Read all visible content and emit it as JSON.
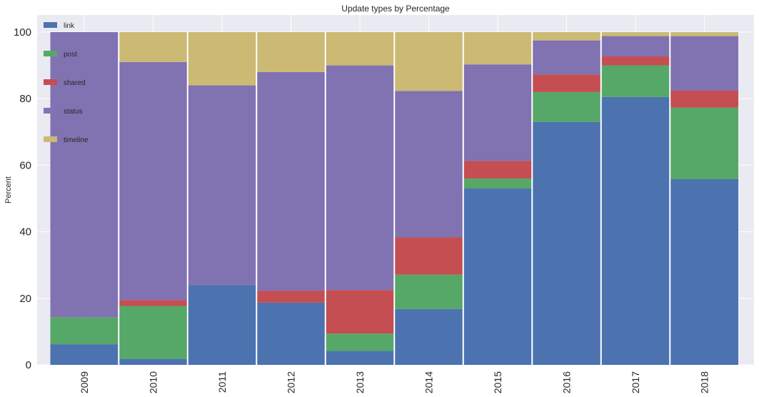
{
  "chart_data": {
    "type": "bar",
    "stacked": true,
    "title": "Update types by Percentage",
    "xlabel": "",
    "ylabel": "Percent",
    "ylim": [
      0,
      100
    ],
    "yticks": [
      0,
      20,
      40,
      60,
      80,
      100
    ],
    "grid": true,
    "legend": "top-left",
    "categories": [
      "2009",
      "2010",
      "2011",
      "2012",
      "2013",
      "2014",
      "2015",
      "2016",
      "2017",
      "2018"
    ],
    "series": [
      {
        "name": "link",
        "color": "#4c72b0",
        "values": [
          6.2,
          1.8,
          24.0,
          18.7,
          4.2,
          16.8,
          53.0,
          73.0,
          80.5,
          55.8
        ]
      },
      {
        "name": "post",
        "color": "#55a868",
        "values": [
          8.1,
          15.9,
          0.0,
          0.0,
          5.2,
          10.3,
          3.0,
          9.0,
          9.5,
          21.5
        ]
      },
      {
        "name": "shared",
        "color": "#c44e52",
        "values": [
          0.0,
          1.8,
          0.0,
          3.6,
          13.1,
          11.2,
          5.3,
          5.3,
          2.7,
          5.1
        ]
      },
      {
        "name": "status",
        "color": "#8172b2",
        "values": [
          85.7,
          71.5,
          60.0,
          65.7,
          67.5,
          44.0,
          29.0,
          10.2,
          6.1,
          16.4
        ]
      },
      {
        "name": "timeline",
        "color": "#ccb974",
        "values": [
          0.0,
          9.0,
          16.0,
          12.0,
          10.0,
          17.7,
          9.7,
          2.5,
          1.2,
          1.2
        ]
      }
    ]
  }
}
